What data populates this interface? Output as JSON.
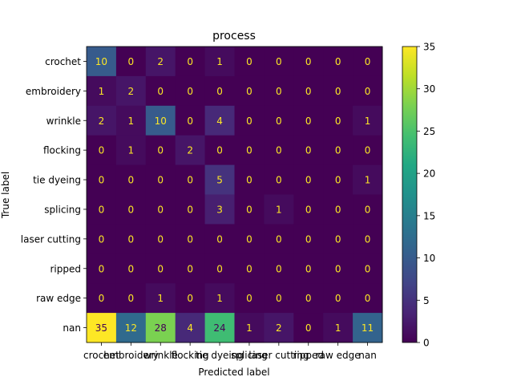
{
  "chart_data": {
    "type": "heatmap",
    "title": "process",
    "xlabel": "Predicted label",
    "ylabel": "True label",
    "x_categories": [
      "crochet",
      "embroidery",
      "wrinkle",
      "flocking",
      "tie dyeing",
      "splicing",
      "laser cutting",
      "ripped",
      "raw edge",
      "nan"
    ],
    "y_categories": [
      "crochet",
      "embroidery",
      "wrinkle",
      "flocking",
      "tie dyeing",
      "splicing",
      "laser cutting",
      "ripped",
      "raw edge",
      "nan"
    ],
    "values": [
      [
        10,
        0,
        2,
        0,
        1,
        0,
        0,
        0,
        0,
        0
      ],
      [
        1,
        2,
        0,
        0,
        0,
        0,
        0,
        0,
        0,
        0
      ],
      [
        2,
        1,
        10,
        0,
        4,
        0,
        0,
        0,
        0,
        1
      ],
      [
        0,
        1,
        0,
        2,
        0,
        0,
        0,
        0,
        0,
        0
      ],
      [
        0,
        0,
        0,
        0,
        5,
        0,
        0,
        0,
        0,
        1
      ],
      [
        0,
        0,
        0,
        0,
        3,
        0,
        1,
        0,
        0,
        0
      ],
      [
        0,
        0,
        0,
        0,
        0,
        0,
        0,
        0,
        0,
        0
      ],
      [
        0,
        0,
        0,
        0,
        0,
        0,
        0,
        0,
        0,
        0
      ],
      [
        0,
        0,
        1,
        0,
        1,
        0,
        0,
        0,
        0,
        0
      ],
      [
        35,
        12,
        28,
        4,
        24,
        1,
        2,
        0,
        1,
        11
      ]
    ],
    "colormap": "viridis",
    "vmin": 0,
    "vmax": 35,
    "colorbar_ticks": [
      0,
      5,
      10,
      15,
      20,
      25,
      30,
      35
    ],
    "grid": false
  }
}
